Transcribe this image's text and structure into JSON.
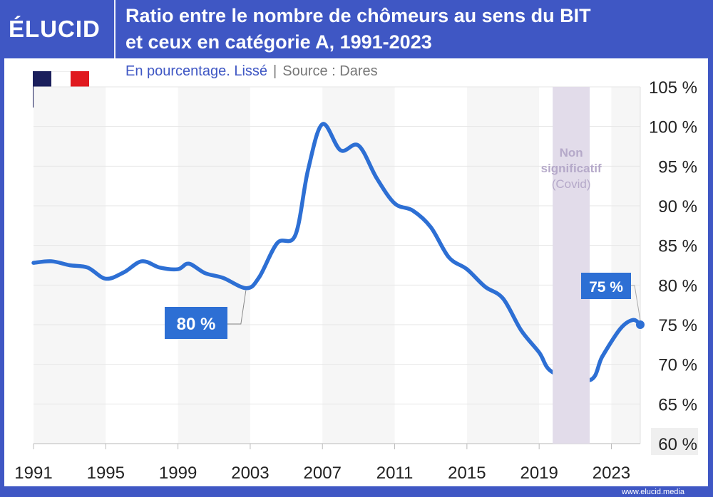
{
  "brand": {
    "logo": "ÉLUCID",
    "footer_url": "www.elucid.media"
  },
  "title": "Ratio entre le nombre de chômeurs au sens du BIT et ceux en catégorie A, 1991-2023",
  "title_lines": [
    "Ratio entre le nombre de chômeurs au sens du BIT",
    "et ceux en catégorie A, 1991-2023"
  ],
  "subtitle": "En pourcentage. Lissé",
  "separator": "|",
  "source": "Source : Dares",
  "flag": {
    "country": "France",
    "colors": [
      "#1b1f5c",
      "#ffffff",
      "#e0191f"
    ]
  },
  "colors": {
    "header": "#3f57c4",
    "line": "#2d6fd4",
    "covid_band": "#e2dcea",
    "covid_text": "#b5a9c9",
    "band": "#f6f6f6"
  },
  "chart_data": {
    "type": "line",
    "title": "Ratio entre le nombre de chômeurs au sens du BIT et ceux en catégorie A, 1991-2023",
    "xlabel": "",
    "ylabel": "",
    "xlim": [
      1991,
      2024.6
    ],
    "ylim": [
      60,
      105
    ],
    "x_ticks": [
      "1991",
      "1995",
      "1999",
      "2003",
      "2007",
      "2011",
      "2015",
      "2019",
      "2023"
    ],
    "y_ticks": [
      "105 %",
      "100 %",
      "95 %",
      "90 %",
      "85 %",
      "80 %",
      "75 %",
      "70 %",
      "65 %",
      "60 %"
    ],
    "y_tick_values": [
      105,
      100,
      95,
      90,
      85,
      80,
      75,
      70,
      65,
      60
    ],
    "grid": true,
    "y_axis_position": "right",
    "series": [
      {
        "x": [
          1991,
          1992,
          1993,
          1994,
          1995,
          1996,
          1997,
          1998,
          1999,
          1999.6,
          2000.5,
          2001.5,
          2002.8,
          2003.5,
          2004.5,
          2005.5,
          2006.2,
          2007,
          2008,
          2009,
          2010,
          2011,
          2012,
          2013,
          2014,
          2015,
          2016,
          2017,
          2018,
          2019,
          2019.75,
          2021.8,
          2022.5,
          2023.5,
          2024.2,
          2024.6
        ],
        "y": [
          82.8,
          83.0,
          82.5,
          82.2,
          80.8,
          81.6,
          83.0,
          82.2,
          82.0,
          82.7,
          81.5,
          80.9,
          79.6,
          81.0,
          85.3,
          86.3,
          94.5,
          100.3,
          97.0,
          97.6,
          93.5,
          90.3,
          89.4,
          87.3,
          83.5,
          82.0,
          79.8,
          78.3,
          74.3,
          71.5,
          69.0,
          68.0,
          71.0,
          74.5,
          75.6,
          75.0
        ]
      }
    ],
    "annotations": [
      {
        "text": "80 %",
        "x": 2002.8,
        "y": 79.6
      },
      {
        "text": "75 %",
        "x": 2024.6,
        "y": 75.0
      }
    ],
    "shaded_region": {
      "x": [
        2019.75,
        2021.8
      ],
      "label_lines": [
        "Non",
        "significatif",
        "(Covid)"
      ]
    }
  }
}
